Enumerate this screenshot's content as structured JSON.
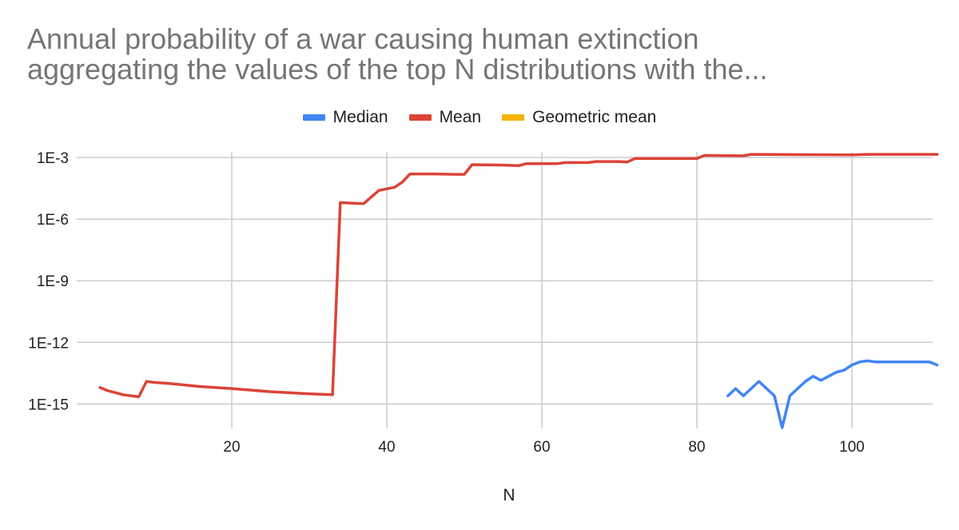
{
  "chart_data": {
    "type": "line",
    "title_lines": [
      "Annual probability of a war causing human extinction",
      "aggregating the values of the top N distributions with the..."
    ],
    "xlabel": "N",
    "ylabel": "",
    "y_scale": "log10",
    "xlim": [
      2,
      111
    ],
    "ylim_exponent": [
      -16,
      -2.5
    ],
    "x_ticks": [
      20,
      40,
      60,
      80,
      100
    ],
    "y_ticks": [
      {
        "exp": -3,
        "label": "1E-3"
      },
      {
        "exp": -6,
        "label": "1E-6"
      },
      {
        "exp": -9,
        "label": "1E-9"
      },
      {
        "exp": -12,
        "label": "1E-12"
      },
      {
        "exp": -15,
        "label": "1E-15"
      }
    ],
    "legend_position": "top-center",
    "series": [
      {
        "name": "Median",
        "color": "#4285F4",
        "points": [
          [
            84,
            -14.6
          ],
          [
            85,
            -14.25
          ],
          [
            86,
            -14.6
          ],
          [
            88,
            -13.9
          ],
          [
            90,
            -14.6
          ],
          [
            91,
            -16.15
          ],
          [
            92,
            -14.6
          ],
          [
            94,
            -13.9
          ],
          [
            95,
            -13.65
          ],
          [
            96,
            -13.85
          ],
          [
            98,
            -13.45
          ],
          [
            99,
            -13.35
          ],
          [
            100,
            -13.1
          ],
          [
            101,
            -12.95
          ],
          [
            102,
            -12.9
          ],
          [
            103,
            -12.95
          ],
          [
            110,
            -12.95
          ],
          [
            111,
            -13.1
          ]
        ]
      },
      {
        "name": "Mean",
        "color": "#DB4437",
        "points": [
          [
            3,
            -14.2
          ],
          [
            4,
            -14.35
          ],
          [
            6,
            -14.55
          ],
          [
            8,
            -14.65
          ],
          [
            9,
            -13.9
          ],
          [
            10,
            -13.95
          ],
          [
            12,
            -14.0
          ],
          [
            16,
            -14.15
          ],
          [
            20,
            -14.25
          ],
          [
            25,
            -14.4
          ],
          [
            30,
            -14.5
          ],
          [
            33,
            -14.55
          ],
          [
            34,
            -5.2
          ],
          [
            37,
            -5.25
          ],
          [
            39,
            -4.6
          ],
          [
            41,
            -4.45
          ],
          [
            42,
            -4.2
          ],
          [
            43,
            -3.8
          ],
          [
            46,
            -3.8
          ],
          [
            49,
            -3.82
          ],
          [
            50,
            -3.82
          ],
          [
            51,
            -3.35
          ],
          [
            55,
            -3.37
          ],
          [
            57,
            -3.4
          ],
          [
            58,
            -3.3
          ],
          [
            62,
            -3.3
          ],
          [
            63,
            -3.25
          ],
          [
            66,
            -3.25
          ],
          [
            67,
            -3.2
          ],
          [
            70,
            -3.2
          ],
          [
            71,
            -3.22
          ],
          [
            72,
            -3.05
          ],
          [
            76,
            -3.05
          ],
          [
            80,
            -3.05
          ],
          [
            81,
            -2.9
          ],
          [
            86,
            -2.92
          ],
          [
            87,
            -2.85
          ],
          [
            100,
            -2.87
          ],
          [
            102,
            -2.85
          ],
          [
            111,
            -2.85
          ]
        ]
      },
      {
        "name": "Geometric mean",
        "color": "#F4B400",
        "points": []
      }
    ]
  }
}
